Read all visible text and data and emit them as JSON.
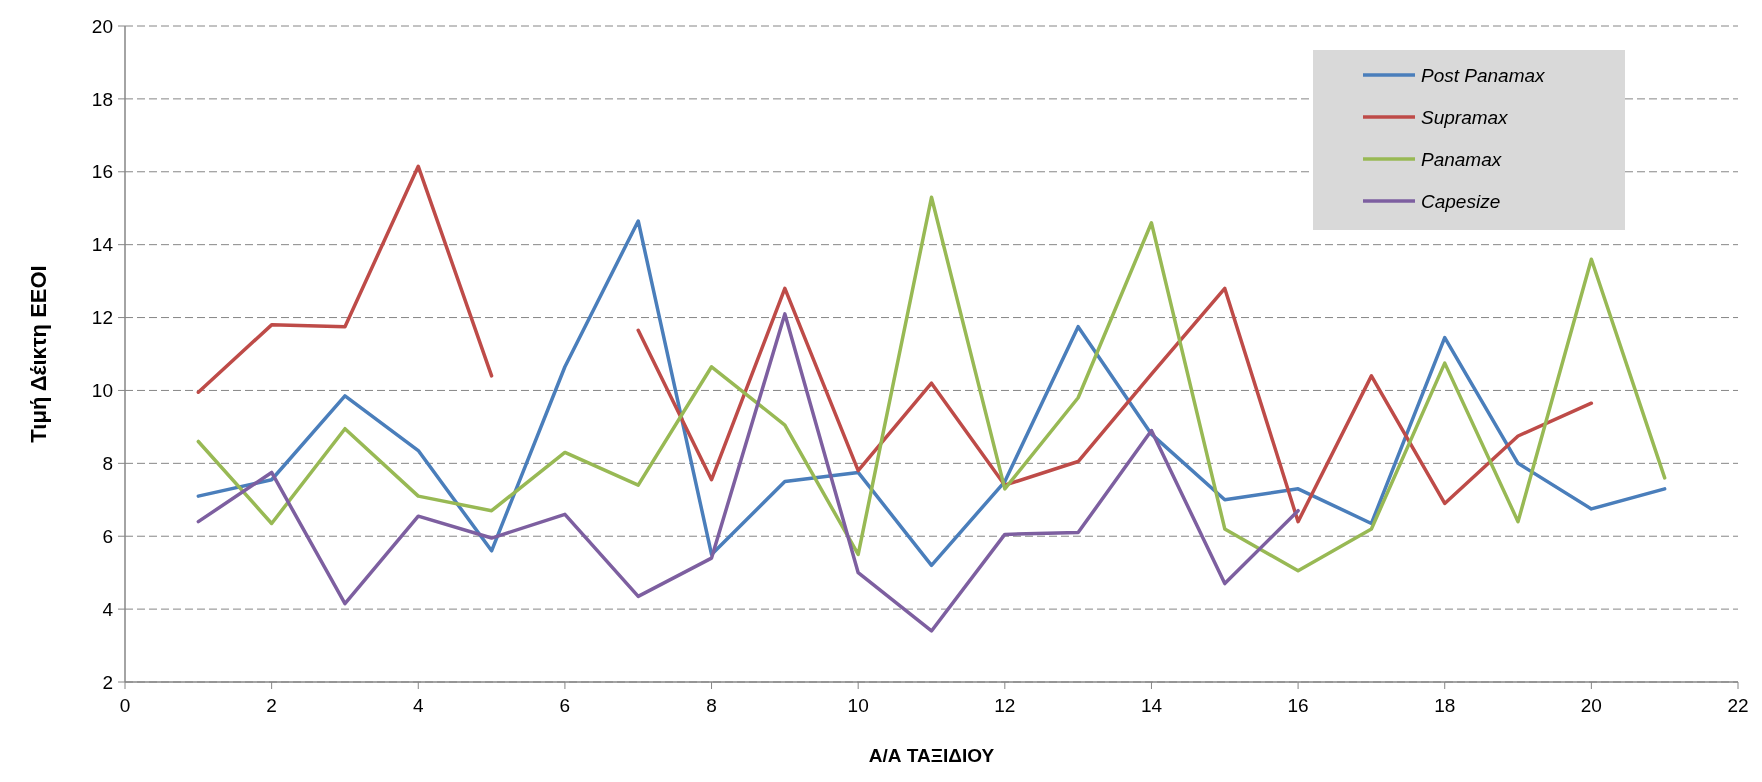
{
  "chart_data": {
    "type": "line",
    "xlabel": "Α/Α ΤΑΞΙΔΙΟΥ",
    "ylabel": "Τιμή Δέικτη EEOI",
    "xlim": [
      0,
      22
    ],
    "xticks": [
      0,
      2,
      4,
      6,
      8,
      10,
      12,
      14,
      16,
      18,
      20,
      22
    ],
    "ylim": [
      2,
      20
    ],
    "yticks": [
      2,
      4,
      6,
      8,
      10,
      12,
      14,
      16,
      18,
      20
    ],
    "grid": "y",
    "legend": "top right",
    "marker": "none",
    "line_style": "solid",
    "series": [
      {
        "name": "Post Panamax",
        "color": "#4a7ebb",
        "x": [
          1,
          2,
          3,
          4,
          5,
          6,
          7,
          8,
          9,
          10,
          11,
          12,
          13,
          14,
          15,
          16,
          17,
          18,
          19,
          20,
          21
        ],
        "values": [
          7.1,
          7.55,
          9.85,
          8.35,
          5.6,
          10.65,
          14.65,
          5.5,
          7.5,
          7.75,
          5.2,
          7.5,
          11.75,
          8.8,
          7.0,
          7.3,
          6.35,
          11.45,
          8.0,
          6.75,
          7.3
        ]
      },
      {
        "name": "Supramax",
        "color": "#be4b48",
        "x": [
          1,
          2,
          3,
          4,
          5,
          6,
          7,
          8,
          9,
          10,
          11,
          12,
          13,
          14,
          15,
          16,
          17,
          18,
          19,
          20
        ],
        "values": [
          9.95,
          11.8,
          11.75,
          16.15,
          10.4,
          null,
          11.65,
          7.55,
          12.8,
          7.8,
          10.2,
          7.4,
          8.05,
          10.45,
          12.8,
          6.4,
          10.4,
          6.9,
          8.75,
          9.65
        ]
      },
      {
        "name": "Panamax",
        "color": "#98b954",
        "x": [
          1,
          2,
          3,
          4,
          5,
          6,
          7,
          8,
          9,
          10,
          11,
          12,
          13,
          14,
          15,
          16,
          17,
          18,
          19,
          20,
          21
        ],
        "values": [
          8.6,
          6.35,
          8.95,
          7.1,
          6.7,
          8.3,
          7.4,
          10.65,
          9.05,
          5.5,
          15.3,
          7.3,
          9.8,
          14.6,
          6.2,
          5.05,
          6.2,
          10.75,
          6.4,
          13.6,
          7.6
        ]
      },
      {
        "name": "Capesize",
        "color": "#7d5fa0",
        "x": [
          1,
          2,
          3,
          4,
          5,
          6,
          7,
          8,
          9,
          10,
          11,
          12,
          13,
          14,
          15,
          16
        ],
        "values": [
          6.4,
          7.75,
          4.15,
          6.55,
          5.95,
          6.6,
          4.35,
          5.4,
          12.1,
          5.0,
          3.4,
          6.05,
          6.1,
          8.9,
          4.7,
          6.7
        ]
      }
    ]
  }
}
